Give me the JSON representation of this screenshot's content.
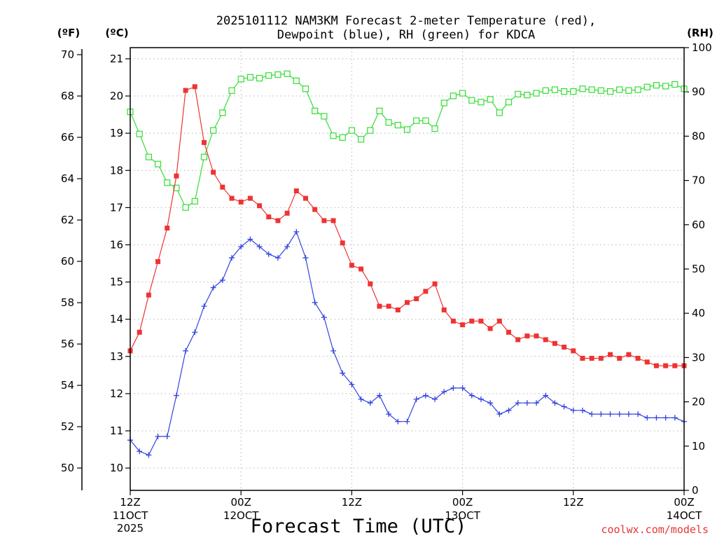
{
  "chart_data": {
    "type": "line",
    "title_line1": "2025101112 NAM3KM Forecast 2-meter Temperature (red),",
    "title_line2": "Dewpoint (blue), RH (green) for KDCA",
    "axis_units": {
      "far_left": "(ºF)",
      "left": "(ºC)",
      "right": "(RH)"
    },
    "xlabel": "Forecast Time (UTC)",
    "credit": "coolwx.com/models",
    "x_range_hours": [
      0,
      60
    ],
    "x_ticks": [
      {
        "hour": 0,
        "line1": "12Z",
        "line2": "11OCT",
        "line3": "2025"
      },
      {
        "hour": 12,
        "line1": "00Z",
        "line2": "12OCT",
        "line3": ""
      },
      {
        "hour": 24,
        "line1": "12Z",
        "line2": "",
        "line3": ""
      },
      {
        "hour": 36,
        "line1": "00Z",
        "line2": "13OCT",
        "line3": ""
      },
      {
        "hour": 48,
        "line1": "12Z",
        "line2": "",
        "line3": ""
      },
      {
        "hour": 60,
        "line1": "00Z",
        "line2": "14OCT",
        "line3": ""
      }
    ],
    "celsius_axis": {
      "range": [
        9.4,
        21.3
      ],
      "ticks": [
        "10",
        "11",
        "12",
        "13",
        "14",
        "15",
        "16",
        "17",
        "18",
        "19",
        "20",
        "21"
      ]
    },
    "fahrenheit_ticks": [
      "50",
      "52",
      "54",
      "56",
      "58",
      "60",
      "62",
      "64",
      "66",
      "68",
      "70"
    ],
    "rh_axis": {
      "range": [
        0,
        100
      ],
      "ticks": [
        "0",
        "10",
        "20",
        "30",
        "40",
        "50",
        "60",
        "70",
        "80",
        "90",
        "100"
      ]
    },
    "hours": [
      0,
      1,
      2,
      3,
      4,
      5,
      6,
      7,
      8,
      9,
      10,
      11,
      12,
      13,
      14,
      15,
      16,
      17,
      18,
      19,
      20,
      21,
      22,
      23,
      24,
      25,
      26,
      27,
      28,
      29,
      30,
      31,
      32,
      33,
      34,
      35,
      36,
      37,
      38,
      39,
      40,
      41,
      42,
      43,
      44,
      45,
      46,
      47,
      48,
      49,
      50,
      51,
      52,
      53,
      54,
      55,
      56,
      57,
      58,
      59,
      60
    ],
    "series": [
      {
        "name": "Temperature",
        "unit": "°C",
        "color": "#ee3333",
        "marker": "filled-square",
        "values": [
          13.15,
          13.65,
          14.65,
          15.55,
          16.45,
          17.85,
          20.15,
          20.25,
          18.75,
          17.95,
          17.55,
          17.25,
          17.15,
          17.25,
          17.05,
          16.75,
          16.65,
          16.85,
          17.45,
          17.25,
          16.95,
          16.65,
          16.65,
          16.05,
          15.45,
          15.35,
          14.95,
          14.35,
          14.35,
          14.25,
          14.45,
          14.55,
          14.75,
          14.95,
          14.25,
          13.95,
          13.85,
          13.95,
          13.95,
          13.75,
          13.95,
          13.65,
          13.45,
          13.55,
          13.55,
          13.45,
          13.35,
          13.25,
          13.15,
          12.95,
          12.95,
          12.95,
          13.05,
          12.95,
          13.05,
          12.95,
          12.85,
          12.75,
          12.75,
          12.75,
          12.75
        ]
      },
      {
        "name": "Dewpoint",
        "unit": "°C",
        "color": "#3344dd",
        "marker": "plus",
        "values": [
          10.75,
          10.45,
          10.35,
          10.85,
          10.85,
          11.95,
          13.15,
          13.65,
          14.35,
          14.85,
          15.05,
          15.65,
          15.95,
          16.15,
          15.95,
          15.75,
          15.65,
          15.95,
          16.35,
          15.65,
          14.45,
          14.05,
          13.15,
          12.55,
          12.25,
          11.85,
          11.75,
          11.95,
          11.45,
          11.25,
          11.25,
          11.85,
          11.95,
          11.85,
          12.05,
          12.15,
          12.15,
          11.95,
          11.85,
          11.75,
          11.45,
          11.55,
          11.75,
          11.75,
          11.75,
          11.95,
          11.75,
          11.65,
          11.55,
          11.55,
          11.45,
          11.45,
          11.45,
          11.45,
          11.45,
          11.45,
          11.35,
          11.35,
          11.35,
          11.35,
          11.25
        ]
      },
      {
        "name": "RH",
        "unit": "%",
        "color": "#33dd33",
        "marker": "open-square",
        "values": [
          85.5,
          80.5,
          75.3,
          73.7,
          69.5,
          68.3,
          63.9,
          65.3,
          75.3,
          81.3,
          85.3,
          90.3,
          92.9,
          93.3,
          93.1,
          93.7,
          93.9,
          94.1,
          92.5,
          90.7,
          85.7,
          84.5,
          80.1,
          79.7,
          81.3,
          79.3,
          81.3,
          85.7,
          83.1,
          82.5,
          81.5,
          83.5,
          83.5,
          81.7,
          87.5,
          89.1,
          89.7,
          88.1,
          87.7,
          88.3,
          85.3,
          87.7,
          89.5,
          89.3,
          89.7,
          90.3,
          90.5,
          90.1,
          90.1,
          90.7,
          90.5,
          90.3,
          90.1,
          90.5,
          90.3,
          90.5,
          91.1,
          91.5,
          91.3,
          91.7,
          90.7
        ]
      }
    ]
  }
}
